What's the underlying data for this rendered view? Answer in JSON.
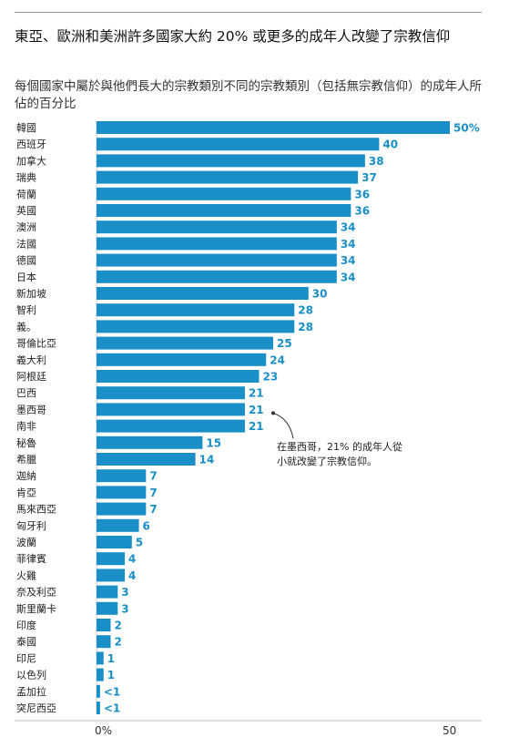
{
  "header": {
    "title": "東亞、歐洲和美洲許多國家大約 20% 或更多的成年人改變了宗教信仰",
    "subtitle": "每個國家中屬於與他們長大的宗教類別不同的宗教類別（包括無宗教信仰）的成年人所佔的百分比"
  },
  "annotation": {
    "text": "在墨西哥，21% 的成年人從小就改變了宗教信仰。",
    "target": "墨西哥"
  },
  "chart_data": {
    "type": "bar",
    "orientation": "horizontal",
    "title": "東亞、歐洲和美洲許多國家大約 20% 或更多的成年人改變了宗教信仰",
    "subtitle": "每個國家中屬於與他們長大的宗教類別不同的宗教類別（包括無宗教信仰）的成年人所佔的百分比",
    "categories": [
      "韓國",
      "西班牙",
      "加拿大",
      "瑞典",
      "荷蘭",
      "英國",
      "澳洲",
      "法國",
      "德國",
      "日本",
      "新加坡",
      "智利",
      "義。",
      "哥倫比亞",
      "義大利",
      "阿根廷",
      "巴西",
      "墨西哥",
      "南非",
      "秘魯",
      "希臘",
      "迦納",
      "肯亞",
      "馬來西亞",
      "匈牙利",
      "波蘭",
      "菲律賓",
      "火雞",
      "奈及利亞",
      "斯里蘭卡",
      "印度",
      "泰國",
      "印尼",
      "以色列",
      "孟加拉",
      "突尼西亞"
    ],
    "values": [
      50,
      40,
      38,
      37,
      36,
      36,
      34,
      34,
      34,
      34,
      30,
      28,
      28,
      25,
      24,
      23,
      21,
      21,
      21,
      15,
      14,
      7,
      7,
      7,
      6,
      5,
      4,
      4,
      3,
      3,
      2,
      2,
      1,
      1,
      0.5,
      0.5
    ],
    "value_labels": [
      "50%",
      "40",
      "38",
      "37",
      "36",
      "36",
      "34",
      "34",
      "34",
      "34",
      "30",
      "28",
      "28",
      "25",
      "24",
      "23",
      "21",
      "21",
      "21",
      "15",
      "14",
      "7",
      "7",
      "7",
      "6",
      "5",
      "4",
      "4",
      "3",
      "3",
      "2",
      "2",
      "1",
      "1",
      "<1",
      "<1"
    ],
    "x_axis": {
      "min": 0,
      "max": 50,
      "tick_labels": [
        "0%",
        "50"
      ]
    },
    "bar_color": "#1a8fc7",
    "grid": false,
    "legend": "none"
  }
}
